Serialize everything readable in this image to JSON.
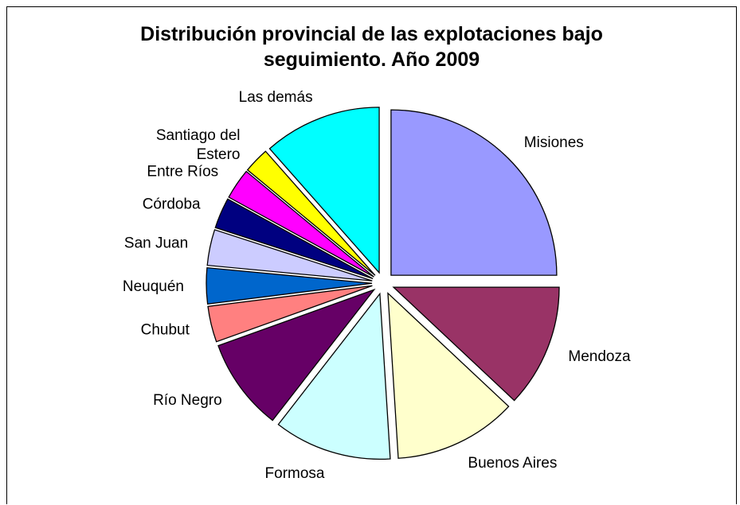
{
  "chart_data": {
    "type": "pie",
    "title": "Distribución provincial de las explotaciones bajo seguimiento. Año 2009",
    "title_lines": [
      "Distribución provincial de las explotaciones bajo",
      "seguimiento. Año 2009"
    ],
    "legend": "none",
    "exploded": true,
    "slices": [
      {
        "label": "Misiones",
        "value": 25.0,
        "color": "#9999FF"
      },
      {
        "label": "Mendoza",
        "value": 12.0,
        "color": "#993366"
      },
      {
        "label": "Buenos Aires",
        "value": 12.0,
        "color": "#FFFFCC"
      },
      {
        "label": "Formosa",
        "value": 11.5,
        "color": "#CCFFFF"
      },
      {
        "label": "Río Negro",
        "value": 9.0,
        "color": "#660066"
      },
      {
        "label": "Chubut",
        "value": 3.5,
        "color": "#FF8080"
      },
      {
        "label": "Neuquén",
        "value": 3.5,
        "color": "#0066CC"
      },
      {
        "label": "San Juan",
        "value": 3.5,
        "color": "#CCCCFF"
      },
      {
        "label": "Córdoba",
        "value": 3.0,
        "color": "#000080"
      },
      {
        "label": "Entre Ríos",
        "value": 3.0,
        "color": "#FF00FF"
      },
      {
        "label": "Santiago del Estero",
        "label_lines": [
          "Santiago del",
          "Estero"
        ],
        "value": 2.5,
        "color": "#FFFF00"
      },
      {
        "label": "Las demás",
        "value": 11.5,
        "color": "#00FFFF"
      }
    ]
  }
}
